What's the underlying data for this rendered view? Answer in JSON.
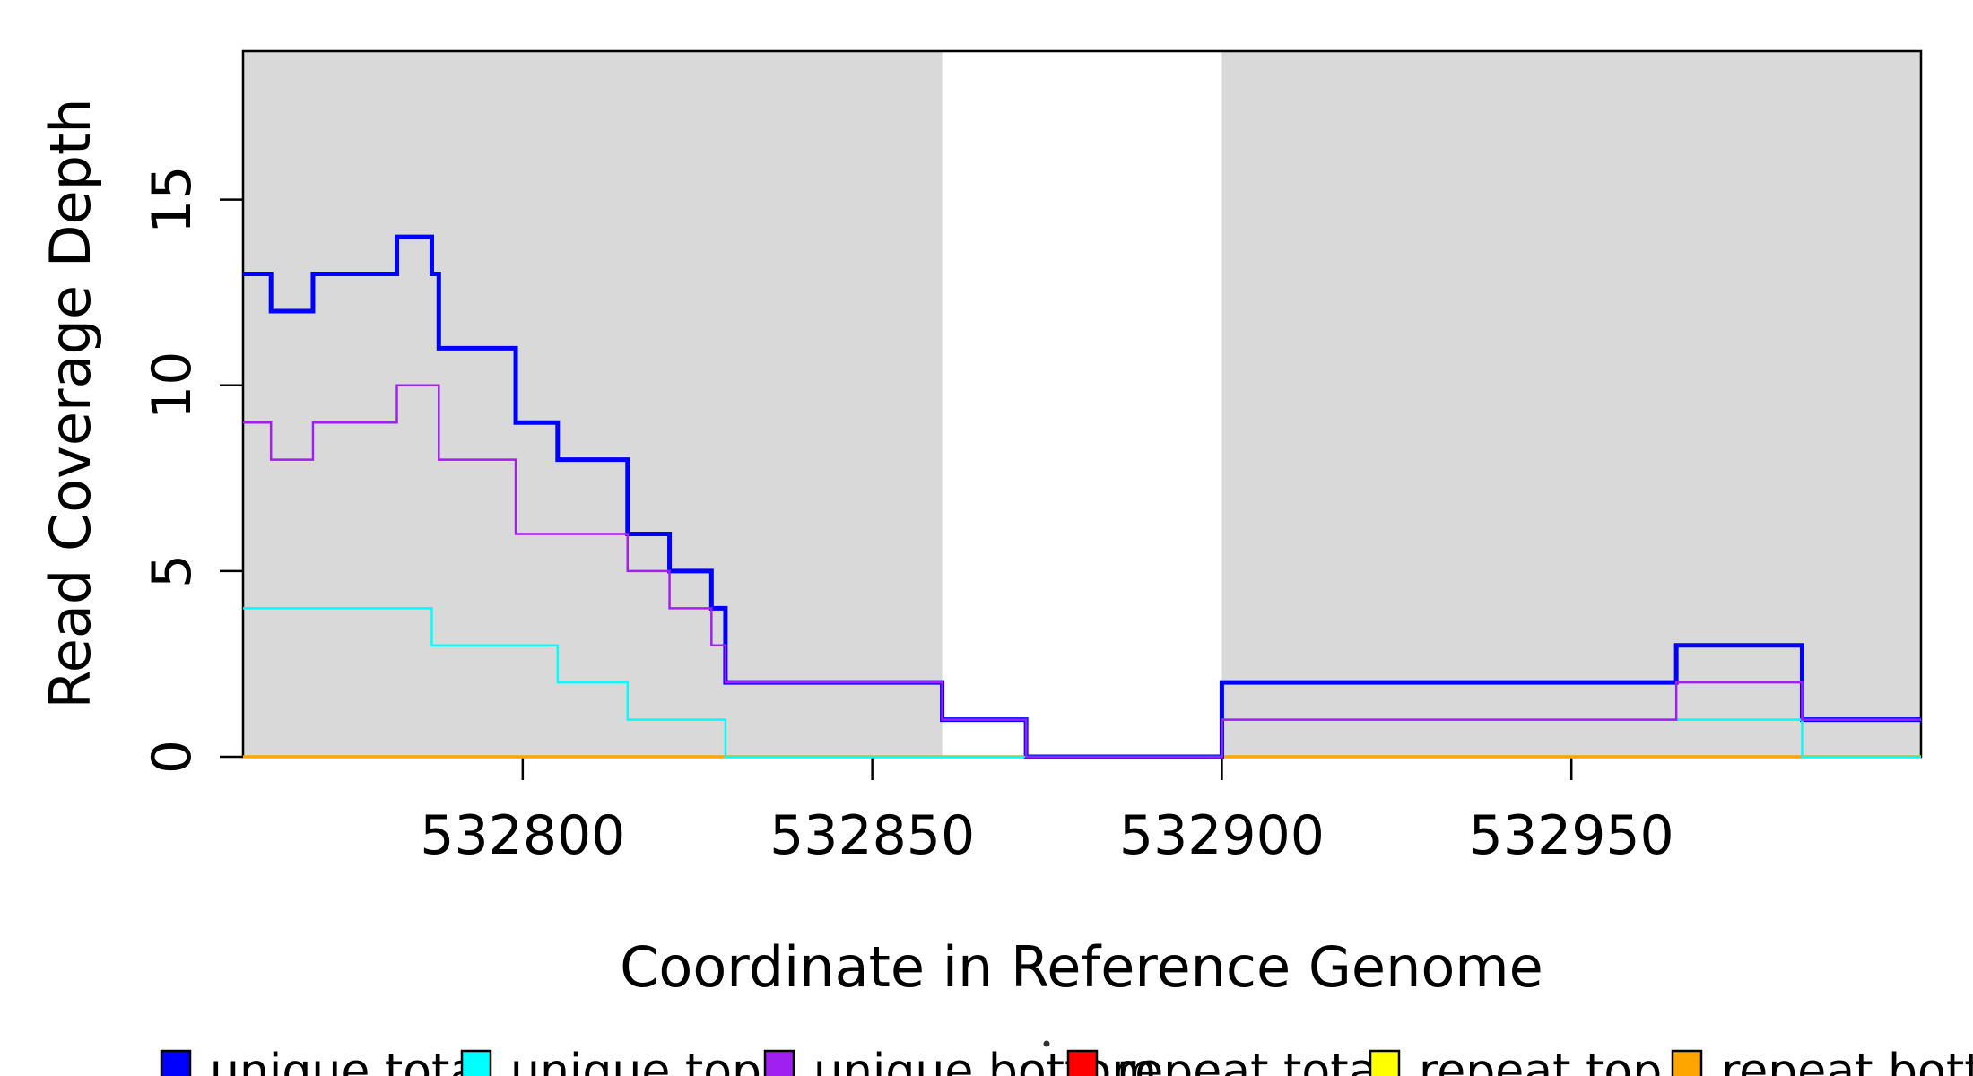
{
  "figure": {
    "background": "#FFFFFF",
    "band_color": "#D9D9D9",
    "axis_color": "#000000"
  },
  "chart_data": {
    "type": "line",
    "subtype": "step-post",
    "title": "",
    "xlabel": "Coordinate in Reference Genome",
    "ylabel": "Read Coverage Depth",
    "xlim": [
      532760,
      533000
    ],
    "ylim": [
      0,
      19
    ],
    "x_ticks": [
      532800,
      532850,
      532900,
      532950
    ],
    "x_tick_labels": [
      "532800",
      "532850",
      "532900",
      "532950"
    ],
    "y_ticks": [
      0,
      5,
      10,
      15
    ],
    "y_tick_labels": [
      "0",
      "5",
      "10",
      "15"
    ],
    "grid": false,
    "legend_position": "bottom",
    "shaded_regions": [
      {
        "from": 532760,
        "to": 532860,
        "color": "#D9D9D9"
      },
      {
        "from": 532900,
        "to": 533000,
        "color": "#D9D9D9"
      }
    ],
    "series": [
      {
        "name": "repeat total",
        "color": "#FF0000",
        "width": 2.5,
        "points": [
          [
            532760,
            0
          ]
        ]
      },
      {
        "name": "repeat top",
        "color": "#FFFF00",
        "width": 2.5,
        "points": [
          [
            532760,
            0
          ]
        ]
      },
      {
        "name": "repeat bottom",
        "color": "#FFA500",
        "width": 3.5,
        "points": [
          [
            532760,
            0
          ]
        ]
      },
      {
        "name": "unique total",
        "color": "#0000FF",
        "width": 5,
        "points": [
          [
            532760,
            13
          ],
          [
            532764,
            12
          ],
          [
            532770,
            13
          ],
          [
            532782,
            14
          ],
          [
            532787,
            13
          ],
          [
            532788,
            11
          ],
          [
            532799,
            9
          ],
          [
            532805,
            8
          ],
          [
            532815,
            6
          ],
          [
            532821,
            5
          ],
          [
            532827,
            4
          ],
          [
            532829,
            2
          ],
          [
            532860,
            1
          ],
          [
            532872,
            0
          ],
          [
            532900,
            2
          ],
          [
            532965,
            3
          ],
          [
            532983,
            1
          ]
        ]
      },
      {
        "name": "unique top",
        "color": "#00FFFF",
        "width": 2.5,
        "points": [
          [
            532760,
            4
          ],
          [
            532787,
            3
          ],
          [
            532805,
            2
          ],
          [
            532815,
            1
          ],
          [
            532829,
            0
          ],
          [
            532900,
            1
          ],
          [
            532983,
            0
          ]
        ]
      },
      {
        "name": "unique bottom",
        "color": "#A020F0",
        "width": 2.5,
        "points": [
          [
            532760,
            9
          ],
          [
            532764,
            8
          ],
          [
            532770,
            9
          ],
          [
            532782,
            10
          ],
          [
            532788,
            8
          ],
          [
            532799,
            6
          ],
          [
            532815,
            5
          ],
          [
            532821,
            4
          ],
          [
            532827,
            3
          ],
          [
            532829,
            2
          ],
          [
            532860,
            1
          ],
          [
            532872,
            0
          ],
          [
            532900,
            1
          ],
          [
            532965,
            2
          ],
          [
            532983,
            1
          ]
        ]
      }
    ],
    "legend": {
      "items": [
        {
          "label": "unique total",
          "color": "#0000FF"
        },
        {
          "label": "unique top",
          "color": "#00FFFF"
        },
        {
          "label": "unique bottom",
          "color": "#A020F0"
        },
        {
          "label": "repeat total",
          "color": "#FF0000"
        },
        {
          "label": "repeat top",
          "color": "#FFFF00"
        },
        {
          "label": "repeat bottom",
          "color": "#FFA500"
        }
      ]
    }
  }
}
